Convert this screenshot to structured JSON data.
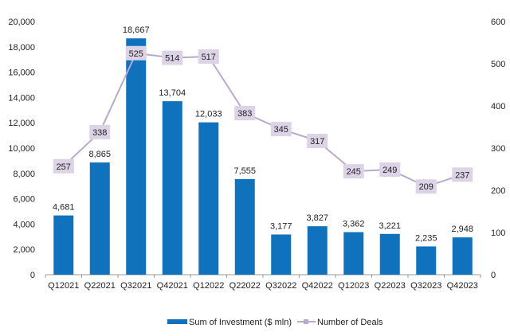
{
  "chart_data": {
    "type": "bar+line",
    "title": "",
    "categories": [
      "Q12021",
      "Q22021",
      "Q32021",
      "Q42021",
      "Q12022",
      "Q22022",
      "Q32022",
      "Q42022",
      "Q12023",
      "Q22023",
      "Q32023",
      "Q42023"
    ],
    "series": [
      {
        "name": "Sum of Investment ($ mln)",
        "type": "bar",
        "axis": "left",
        "color": "#1072BD",
        "values": [
          4681,
          8865,
          18667,
          13704,
          12033,
          7555,
          3177,
          3827,
          3362,
          3221,
          2235,
          2948
        ],
        "labels": [
          "4,681",
          "8,865",
          "18,667",
          "13,704",
          "12,033",
          "7,555",
          "3,177",
          "3,827",
          "3,362",
          "3,221",
          "2,235",
          "2,948"
        ]
      },
      {
        "name": "Number of Deals",
        "type": "line",
        "axis": "right",
        "color": "#B9A9CF",
        "label_bg": "#DCD3E6",
        "values": [
          257,
          338,
          525,
          514,
          517,
          383,
          345,
          317,
          245,
          249,
          209,
          237
        ],
        "labels": [
          "257",
          "338",
          "525",
          "514",
          "517",
          "383",
          "345",
          "317",
          "245",
          "249",
          "209",
          "237"
        ]
      }
    ],
    "y_left": {
      "range": [
        0,
        20000
      ],
      "ticks": [
        "0",
        "2,000",
        "4,000",
        "6,000",
        "8,000",
        "10,000",
        "12,000",
        "14,000",
        "16,000",
        "18,000",
        "20,000"
      ]
    },
    "y_right": {
      "range": [
        0,
        600
      ],
      "ticks": [
        "0",
        "100",
        "200",
        "300",
        "400",
        "500",
        "600"
      ]
    },
    "grid": false,
    "legend": "bottom"
  }
}
